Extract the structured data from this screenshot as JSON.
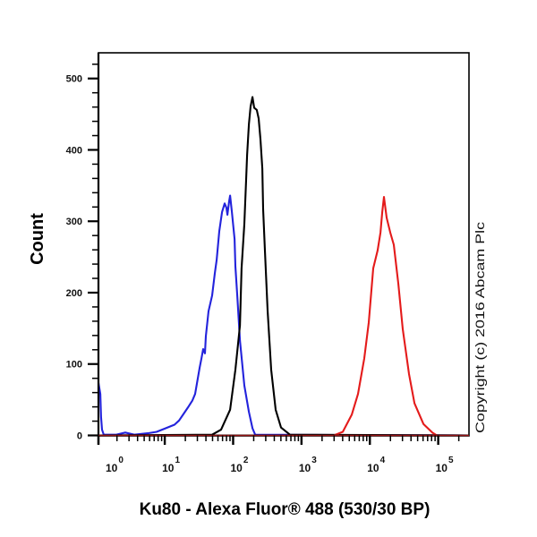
{
  "chart_data": {
    "type": "line",
    "subtype": "flow cytometry histogram (overlay)",
    "title": "",
    "xlabel": "Ku80 - Alexa Fluor® 488 (530/30 BP)",
    "ylabel": "Count",
    "x_scale": "log",
    "x_log10_range": [
      0.03,
      5.45
    ],
    "ylim": [
      0,
      536
    ],
    "grid": false,
    "legend": null,
    "yticks": [
      0,
      100,
      200,
      300,
      400,
      500
    ],
    "yminor_step": 20,
    "xticks": [
      1,
      10,
      100,
      1000,
      10000,
      100000
    ],
    "xtick_labels": [
      {
        "base": "10",
        "exp": "0"
      },
      {
        "base": "10",
        "exp": "1"
      },
      {
        "base": "10",
        "exp": "2"
      },
      {
        "base": "10",
        "exp": "3"
      },
      {
        "base": "10",
        "exp": "4"
      },
      {
        "base": "10",
        "exp": "5"
      }
    ],
    "annotations": [
      {
        "text": "Copyright (c) 2016 Abcam Plc",
        "position": "right, vertical"
      }
    ],
    "series": [
      {
        "name": "blue",
        "color": "#2323dc",
        "peak": {
          "x": 90,
          "count": 336
        },
        "points": [
          [
            1.07,
            74
          ],
          [
            1.14,
            58
          ],
          [
            1.17,
            26
          ],
          [
            1.21,
            8
          ],
          [
            1.28,
            1
          ],
          [
            1.96,
            1
          ],
          [
            2.65,
            4
          ],
          [
            3.58,
            1
          ],
          [
            5.63,
            3
          ],
          [
            7.6,
            5
          ],
          [
            10.3,
            10
          ],
          [
            13.9,
            15
          ],
          [
            16.2,
            21
          ],
          [
            18.8,
            30
          ],
          [
            21.8,
            39
          ],
          [
            25.4,
            49
          ],
          [
            27.8,
            58
          ],
          [
            32.4,
            95
          ],
          [
            34.4,
            108
          ],
          [
            36.5,
            121
          ],
          [
            38.7,
            115
          ],
          [
            39.9,
            139
          ],
          [
            43.7,
            174
          ],
          [
            49.3,
            196
          ],
          [
            54,
            227
          ],
          [
            57.4,
            246
          ],
          [
            62.8,
            286
          ],
          [
            68.8,
            313
          ],
          [
            75.2,
            325
          ],
          [
            79.9,
            319
          ],
          [
            82.4,
            309
          ],
          [
            87.5,
            328
          ],
          [
            90.2,
            336
          ],
          [
            95.8,
            313
          ],
          [
            105,
            275
          ],
          [
            108,
            237
          ],
          [
            115,
            196
          ],
          [
            126,
            133
          ],
          [
            146,
            70
          ],
          [
            170,
            33
          ],
          [
            192,
            10
          ],
          [
            210,
            1
          ],
          [
            282000,
            0
          ]
        ]
      },
      {
        "name": "black",
        "color": "#000000",
        "peak": {
          "x": 192,
          "count": 474
        },
        "points": [
          [
            1.07,
            0
          ],
          [
            49.3,
            1
          ],
          [
            66.6,
            8
          ],
          [
            90.2,
            36
          ],
          [
            108,
            92
          ],
          [
            126,
            154
          ],
          [
            133,
            234
          ],
          [
            146,
            296
          ],
          [
            155,
            358
          ],
          [
            160,
            393
          ],
          [
            170,
            436
          ],
          [
            180,
            461
          ],
          [
            192,
            474
          ],
          [
            203,
            459
          ],
          [
            222,
            456
          ],
          [
            236,
            444
          ],
          [
            251,
            415
          ],
          [
            267,
            374
          ],
          [
            275,
            317
          ],
          [
            292,
            259
          ],
          [
            319,
            175
          ],
          [
            360,
            92
          ],
          [
            419,
            36
          ],
          [
            502,
            11
          ],
          [
            679,
            1
          ],
          [
            282000,
            0
          ]
        ]
      },
      {
        "name": "red",
        "color": "#e41b1b",
        "peak": {
          "x": 16100,
          "count": 334
        },
        "points": [
          [
            1.07,
            0
          ],
          [
            2970,
            0
          ],
          [
            4020,
            5
          ],
          [
            5430,
            29
          ],
          [
            6710,
            58
          ],
          [
            8290,
            108
          ],
          [
            9640,
            158
          ],
          [
            11200,
            234
          ],
          [
            13000,
            259
          ],
          [
            14300,
            284
          ],
          [
            15200,
            313
          ],
          [
            16100,
            334
          ],
          [
            17600,
            305
          ],
          [
            19900,
            284
          ],
          [
            22400,
            267
          ],
          [
            26100,
            212
          ],
          [
            30300,
            149
          ],
          [
            37400,
            86
          ],
          [
            44900,
            45
          ],
          [
            60700,
            16
          ],
          [
            82000,
            4
          ],
          [
            95400,
            0
          ],
          [
            282000,
            0
          ]
        ]
      }
    ]
  }
}
